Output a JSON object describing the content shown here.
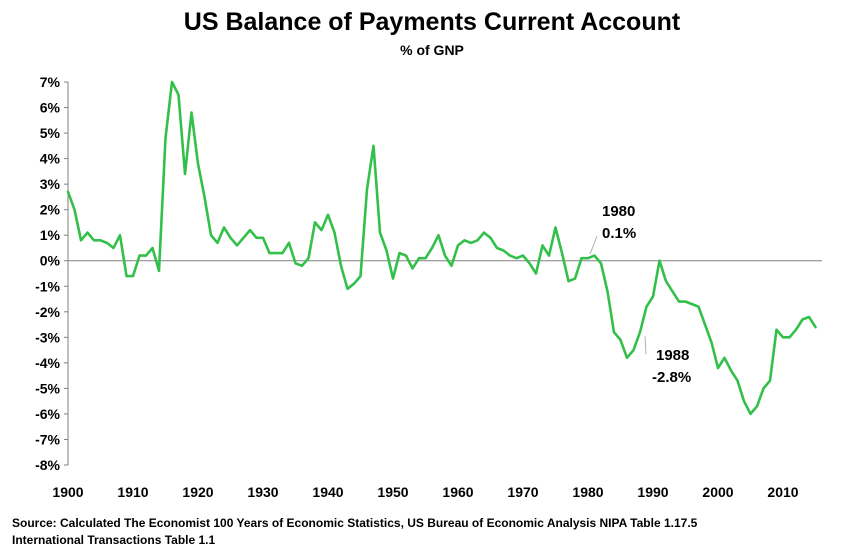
{
  "chart_data": {
    "type": "line",
    "title": "US Balance of Payments Current Account",
    "subtitle": "% of GNP",
    "xlabel": "",
    "ylabel": "",
    "xlim": [
      1900,
      2016
    ],
    "ylim": [
      -8,
      7
    ],
    "x_ticks": [
      1900,
      1910,
      1920,
      1930,
      1940,
      1950,
      1960,
      1970,
      1980,
      1990,
      2000,
      2010
    ],
    "y_ticks": [
      7,
      6,
      5,
      4,
      3,
      2,
      1,
      0,
      -1,
      -2,
      -3,
      -4,
      -5,
      -6,
      -7,
      -8
    ],
    "y_tick_labels": [
      "7%",
      "6%",
      "5%",
      "4%",
      "3%",
      "2%",
      "1%",
      "0%",
      "-1%",
      "-2%",
      "-3%",
      "-4%",
      "-5%",
      "-6%",
      "-7%",
      "-8%"
    ],
    "grid": false,
    "line_color": "#33c04a",
    "series": [
      {
        "x": [
          1900,
          1901,
          1902,
          1903,
          1904,
          1905,
          1906,
          1907,
          1908,
          1909,
          1910,
          1911,
          1912,
          1913,
          1914,
          1915,
          1916,
          1917,
          1918,
          1919,
          1920,
          1921,
          1922,
          1923,
          1924,
          1925,
          1926,
          1927,
          1928,
          1929,
          1930,
          1931,
          1932,
          1933,
          1934,
          1935,
          1936,
          1937,
          1938,
          1939,
          1940,
          1941,
          1942,
          1943,
          1944,
          1945,
          1946,
          1947,
          1948,
          1949,
          1950,
          1951,
          1952,
          1953,
          1954,
          1955,
          1956,
          1957,
          1958,
          1959,
          1960,
          1961,
          1962,
          1963,
          1964,
          1965,
          1966,
          1967,
          1968,
          1969,
          1970,
          1971,
          1972,
          1973,
          1974,
          1975,
          1976,
          1977,
          1978,
          1979,
          1980,
          1981,
          1982,
          1983,
          1984,
          1985,
          1986,
          1987,
          1988,
          1989,
          1990,
          1991,
          1992,
          1993,
          1994,
          1995,
          1996,
          1997,
          1998,
          1999,
          2000,
          2001,
          2002,
          2003,
          2004,
          2005,
          2006,
          2007,
          2008,
          2009,
          2010,
          2011,
          2012,
          2013,
          2014,
          2015
        ],
        "values": [
          2.7,
          2.0,
          0.8,
          1.1,
          0.8,
          0.8,
          0.7,
          0.5,
          1.0,
          -0.6,
          -0.6,
          0.2,
          0.2,
          0.5,
          -0.4,
          4.8,
          7.0,
          6.5,
          3.4,
          5.8,
          3.8,
          2.5,
          1.0,
          0.7,
          1.3,
          0.9,
          0.6,
          0.9,
          1.2,
          0.9,
          0.9,
          0.3,
          0.3,
          0.3,
          0.7,
          -0.1,
          -0.2,
          0.1,
          1.5,
          1.2,
          1.8,
          1.1,
          -0.2,
          -1.1,
          -0.9,
          -0.6,
          2.8,
          4.5,
          1.1,
          0.4,
          -0.7,
          0.3,
          0.2,
          -0.3,
          0.1,
          0.1,
          0.5,
          1.0,
          0.2,
          -0.2,
          0.6,
          0.8,
          0.7,
          0.8,
          1.1,
          0.9,
          0.5,
          0.4,
          0.2,
          0.1,
          0.2,
          -0.1,
          -0.5,
          0.6,
          0.2,
          1.3,
          0.3,
          -0.8,
          -0.7,
          0.1,
          0.1,
          0.2,
          -0.1,
          -1.2,
          -2.8,
          -3.1,
          -3.8,
          -3.5,
          -2.8,
          -1.8,
          -1.4,
          0.0,
          -0.8,
          -1.2,
          -1.6,
          -1.6,
          -1.7,
          -1.8,
          -2.5,
          -3.2,
          -4.2,
          -3.8,
          -4.3,
          -4.7,
          -5.5,
          -6.0,
          -5.7,
          -5.0,
          -4.7,
          -2.7,
          -3.0,
          -3.0,
          -2.7,
          -2.3,
          -2.2,
          -2.6
        ]
      }
    ],
    "annotations": [
      {
        "year_label": "1980",
        "value_label": "0.1%",
        "x": 1980,
        "y": 0.1
      },
      {
        "year_label": "1988",
        "value_label": "-2.8%",
        "x": 1988,
        "y": -2.8
      }
    ]
  },
  "source": {
    "line1": "Source: Calculated The Economist  100 Years of Economic Statistics, US Bureau of Economic Analysis NIPA Table 1.17.5",
    "line2": "International Transactions Table 1.1"
  }
}
